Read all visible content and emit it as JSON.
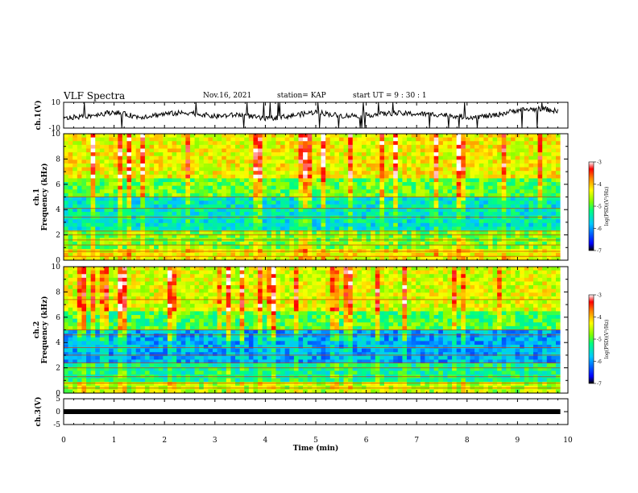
{
  "header": {
    "title": "VLF Spectra",
    "date": "Nov.16, 2021",
    "station": "station= KAP",
    "start_ut": "start UT =  9 : 30 : 1"
  },
  "colors": {
    "colormap": [
      "#000000",
      "#0000ff",
      "#00c8ff",
      "#00ff80",
      "#80ff00",
      "#ffff00",
      "#ff8000",
      "#ff0000",
      "#ffffff"
    ]
  },
  "chart_data": [
    {
      "panel": "ch1-waveform",
      "type": "line",
      "ylabel": "ch.1(V)",
      "ylim": [
        -10,
        10
      ],
      "yticks": [
        "10",
        "-10"
      ],
      "xlim": [
        0,
        10
      ],
      "series": [
        {
          "values_description_free": true,
          "x": [
            0.0,
            0.5,
            1.0,
            1.5,
            2.0,
            2.5,
            3.0,
            3.5,
            4.0,
            4.5,
            5.0,
            5.5,
            6.0,
            6.5,
            7.0,
            7.5,
            8.0,
            8.5,
            9.0,
            9.5,
            9.8
          ],
          "y": [
            -2.5,
            -0.5,
            2.5,
            -1.5,
            1.0,
            2.0,
            -1.0,
            0.5,
            -3.0,
            -0.5,
            2.5,
            -0.5,
            0.0,
            1.5,
            1.0,
            0.5,
            -1.5,
            -0.5,
            4.0,
            5.0,
            3.0
          ]
        }
      ]
    },
    {
      "panel": "ch1-spectrogram",
      "type": "heatmap",
      "ylabel": "ch.1\nFrequency (kHz)",
      "ylim": [
        0,
        10
      ],
      "yticks": [
        "0",
        "2",
        "4",
        "6",
        "8",
        "10"
      ],
      "xlim": [
        0,
        9.85
      ],
      "colorbar": {
        "label": "log(PSD)(V²/Hz)",
        "min": -7,
        "max": -3,
        "ticks": [
          "-3",
          "-4",
          "-5",
          "-6",
          "-7"
        ]
      },
      "approx_log_psd_by_band": [
        {
          "f_khz": [
            0,
            1.0
          ],
          "value": -4.3
        },
        {
          "f_khz": [
            1.0,
            2.5
          ],
          "value": -4.8
        },
        {
          "f_khz": [
            2.5,
            5.0
          ],
          "value": -5.5
        },
        {
          "f_khz": [
            5.0,
            6.5
          ],
          "value": -4.9
        },
        {
          "f_khz": [
            6.5,
            10.0
          ],
          "value": -4.3
        }
      ]
    },
    {
      "panel": "ch2-spectrogram",
      "type": "heatmap",
      "ylabel": "ch.2\nFrequency (kHz)",
      "ylim": [
        0,
        10
      ],
      "yticks": [
        "0",
        "2",
        "4",
        "6",
        "8",
        "10"
      ],
      "xlim": [
        0,
        9.85
      ],
      "colorbar": {
        "label": "log(PSD)(V²/Hz)",
        "min": -7,
        "max": -3,
        "ticks": [
          "-3",
          "-4",
          "-5",
          "-6",
          "-7"
        ]
      },
      "approx_log_psd_by_band": [
        {
          "f_khz": [
            0,
            1.0
          ],
          "value": -4.6
        },
        {
          "f_khz": [
            1.0,
            2.5
          ],
          "value": -5.3
        },
        {
          "f_khz": [
            2.5,
            5.0
          ],
          "value": -5.9
        },
        {
          "f_khz": [
            5.0,
            6.5
          ],
          "value": -5.0
        },
        {
          "f_khz": [
            6.5,
            10.0
          ],
          "value": -4.4
        }
      ]
    },
    {
      "panel": "ch3-waveform",
      "type": "line",
      "ylabel": "ch.3(V)",
      "ylim": [
        -5,
        5
      ],
      "yticks": [
        "5",
        "0",
        "-5"
      ],
      "xlim": [
        0,
        10
      ],
      "xlabel": "Time (min)",
      "xticks": [
        "0",
        "1",
        "2",
        "3",
        "4",
        "5",
        "6",
        "7",
        "8",
        "9",
        "10"
      ],
      "series": [
        {
          "x": [
            0,
            9.85
          ],
          "y": [
            0,
            0
          ]
        }
      ]
    }
  ]
}
